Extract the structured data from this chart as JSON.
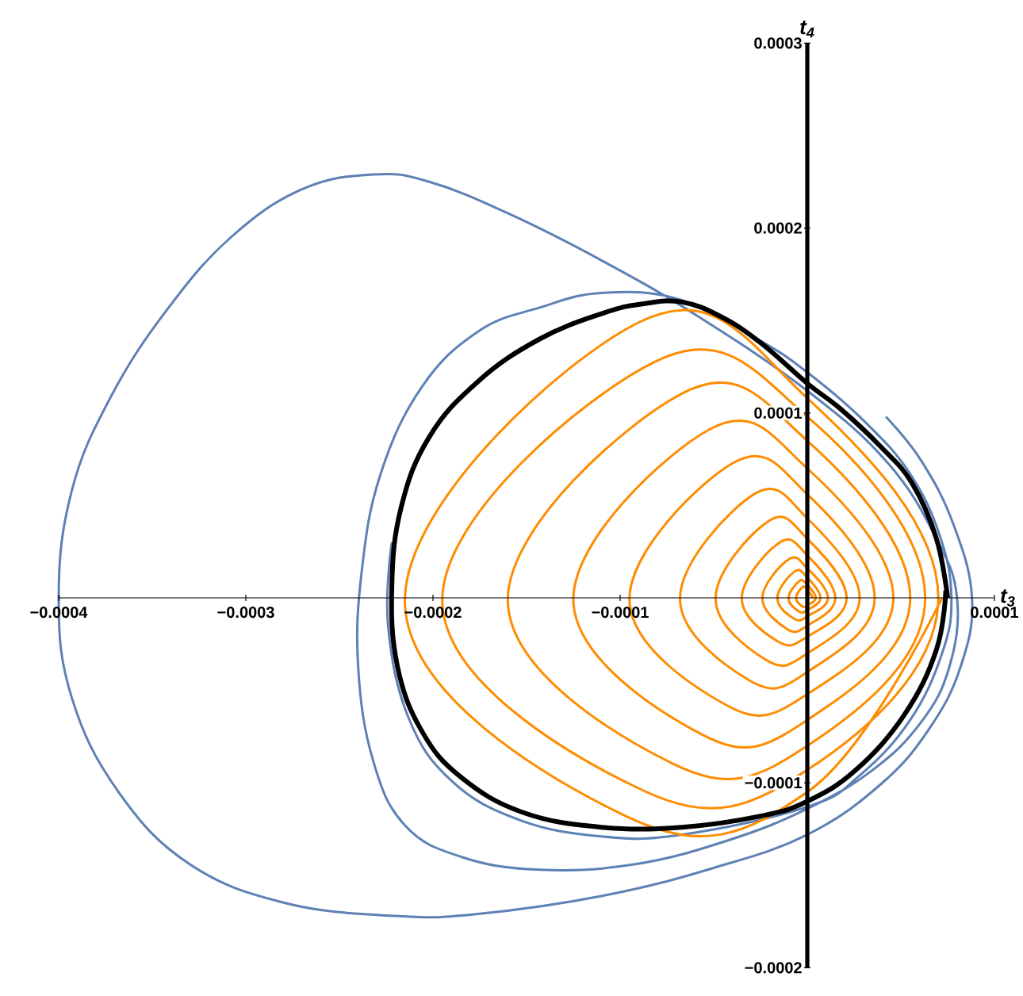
{
  "chart_data": {
    "type": "line",
    "xlabel": "t$_{3}$",
    "ylabel": "t$_{4}$",
    "xlim": [
      -0.0004,
      0.0001
    ],
    "ylim": [
      -0.0002,
      0.0003
    ],
    "xticks": [
      {
        "value": -0.0004,
        "label": "−0.0004"
      },
      {
        "value": -0.0003,
        "label": "−0.0003"
      },
      {
        "value": -0.0002,
        "label": "−0.0002"
      },
      {
        "value": -0.0001,
        "label": "−0.0001"
      },
      {
        "value": 0,
        "label": null
      },
      {
        "value": 0.0001,
        "label": "0.0001"
      }
    ],
    "yticks": [
      {
        "value": -0.0002,
        "label": "−0.0002"
      },
      {
        "value": -0.0001,
        "label": "−0.0001"
      },
      {
        "value": 0,
        "label": null
      },
      {
        "value": 0.0001,
        "label": "0.0001"
      },
      {
        "value": 0.0002,
        "label": "0.0002"
      },
      {
        "value": 0.0003,
        "label": "0.0003"
      }
    ],
    "series": [
      {
        "color": "#5e81b5",
        "x": [
          4.2e-05,
          6.1e-05,
          7.8e-05,
          8.8e-05,
          8.2e-05,
          6.5e-05,
          3.9e-05,
          0,
          -5e-05,
          -0.000109,
          -0.000177,
          -0.00022,
          -0.000279,
          -0.00033,
          -0.000368,
          -0.000393,
          -0.0004,
          -0.000393,
          -0.000372,
          -0.000342,
          -0.000308,
          -0.00027,
          -0.000232,
          -0.000202,
          -0.00016,
          -0.000109,
          -5.8e-05,
          0,
          4.3e-05,
          6.9e-05,
          8e-05,
          7.6e-05,
          6.1e-05,
          3.5e-05,
          0,
          -4.2e-05,
          -9.2e-05,
          -0.000143,
          -0.000185,
          -0.000215,
          -0.000232,
          -0.00024,
          -0.000238,
          -0.000228,
          -0.000206,
          -0.000176,
          -0.000143,
          -0.000109,
          -6.7e-05,
          -2.5e-05,
          0,
          3e-05,
          5.5e-05,
          7.1e-05,
          7.7e-05,
          7.2e-05,
          5.5e-05,
          2.8e-05,
          0,
          -6.7e-05,
          -0.00011,
          -0.000154,
          -0.00019,
          -0.000213,
          -0.000224,
          -0.000222
        ],
        "values": [
          9.8e-05,
          7.4e-05,
          4e-05,
          0,
          -3.7e-05,
          -7.1e-05,
          -0.000101,
          -0.000128,
          -0.000146,
          -0.000161,
          -0.000171,
          -0.000172,
          -0.000165,
          -0.000144,
          -0.000105,
          -5.4e-05,
          0,
          5.8e-05,
          0.000109,
          0.000156,
          0.000195,
          0.000221,
          0.000229,
          0.000225,
          0.000208,
          0.000182,
          0.000152,
          0.000112,
          7.3e-05,
          3.2e-05,
          0,
          -3.7e-05,
          -6.7e-05,
          -9.3e-05,
          -0.000114,
          -0.000131,
          -0.000144,
          -0.000147,
          -0.00014,
          -0.000123,
          -8.8e-05,
          -3.7e-05,
          1.5e-05,
          6.7e-05,
          0.000114,
          0.000144,
          0.000157,
          0.000165,
          0.000161,
          0.000139,
          0.000122,
          9.6e-05,
          6.7e-05,
          3.3e-05,
          0,
          -3e-05,
          -6.6e-05,
          -9.6e-05,
          -0.000113,
          -0.000128,
          -0.000129,
          -0.00012,
          -9.9e-05,
          -6.5e-05,
          -1.5e-05,
          3e-05
        ]
      },
      {
        "color": "#ff8c00",
        "x": [
          3e-06,
          0,
          -2.5e-06,
          -6e-06,
          -2.7e-06,
          0,
          4.5e-06,
          0,
          -4.2e-06,
          -1e-05,
          -4.5e-06,
          0,
          7e-06,
          0,
          -6.7e-06,
          -1.6e-05,
          -7.2e-06,
          0,
          1.1e-05,
          0,
          -1e-05,
          -2.4e-05,
          -1.08e-05,
          0,
          1.5e-05,
          0,
          -1.47e-05,
          -3.5e-05,
          -1.58e-05,
          0,
          2.1e-05,
          0,
          -2.06e-05,
          -4.9e-05,
          -2.2e-05,
          0,
          2.8e-05,
          0,
          -2.86e-05,
          -6.8e-05,
          -3.06e-05,
          0,
          3.6e-05,
          0,
          -4e-05,
          -9.5e-05,
          -4.28e-05,
          0,
          4.6e-05,
          0,
          -5.25e-05,
          -0.000125,
          -5.6e-05,
          0,
          5.5e-05,
          0,
          -6.7e-05,
          -0.00016,
          -7.2e-05,
          0,
          6.3e-05,
          0,
          -8.2e-05,
          -0.000195,
          -8.8e-05,
          0,
          7e-05,
          0,
          -9e-05,
          -0.000215,
          -9.7e-05,
          0,
          7.2e-05
        ],
        "values": [
          0,
          4.5e-06,
          5.9e-06,
          0,
          -4.5e-06,
          -4e-06,
          0,
          7e-06,
          9.1e-06,
          0,
          -7.3e-06,
          -6.5e-06,
          0,
          1.1e-05,
          1.43e-05,
          0,
          -1.12e-05,
          -1e-05,
          0,
          1.6e-05,
          2.08e-05,
          0,
          -1.68e-05,
          -1.5e-05,
          0,
          2.3e-05,
          3e-05,
          0,
          -2.35e-05,
          -2.1e-05,
          0,
          3.2e-05,
          4.16e-05,
          0,
          -3.36e-05,
          -3e-05,
          0,
          4.3e-05,
          5.6e-05,
          0,
          -4.48e-05,
          -4e-05,
          0,
          5.6e-05,
          7.28e-05,
          0,
          -5.82e-05,
          -5.2e-05,
          0,
          7e-05,
          9.1e-05,
          0,
          -7.4e-05,
          -6.6e-05,
          0,
          8.5e-05,
          0.0001105,
          0,
          -8.96e-05,
          -8e-05,
          0,
          9.8e-05,
          0.0001274,
          0,
          -0.000104,
          -9.3e-05,
          0,
          0.000108,
          0.000149,
          0,
          -0.000118,
          -0.000105,
          0
        ]
      },
      {
        "color": "#000000",
        "x": [
          7.5e-05,
          6.9e-05,
          5.6e-05,
          3.9e-05,
          1.8e-05,
          0,
          -2.5e-05,
          -4.6e-05,
          -6.7e-05,
          -8.8e-05,
          -0.000109,
          -0.000143,
          -0.000176,
          -0.000202,
          -0.000217,
          -0.000222,
          -0.000219,
          -0.000206,
          -0.000185,
          -0.000152,
          -0.00011,
          -6.7e-05,
          -2.5e-05,
          0,
          2.6e-05,
          5.2e-05,
          6.9e-05,
          7.4e-05
        ],
        "values": [
          0,
          3.2e-05,
          6.2e-05,
          8.2e-05,
          0.000102,
          0.000116,
          0.000138,
          0.000152,
          0.00016,
          0.000159,
          0.000154,
          0.00014,
          0.000117,
          8.7e-05,
          4.9e-05,
          6e-06,
          -3.7e-05,
          -7.2e-05,
          -9.7e-05,
          -0.000116,
          -0.000124,
          -0.000124,
          -0.000118,
          -0.00011,
          -9.3e-05,
          -6.3e-05,
          -2.8e-05,
          4e-06
        ]
      }
    ]
  }
}
